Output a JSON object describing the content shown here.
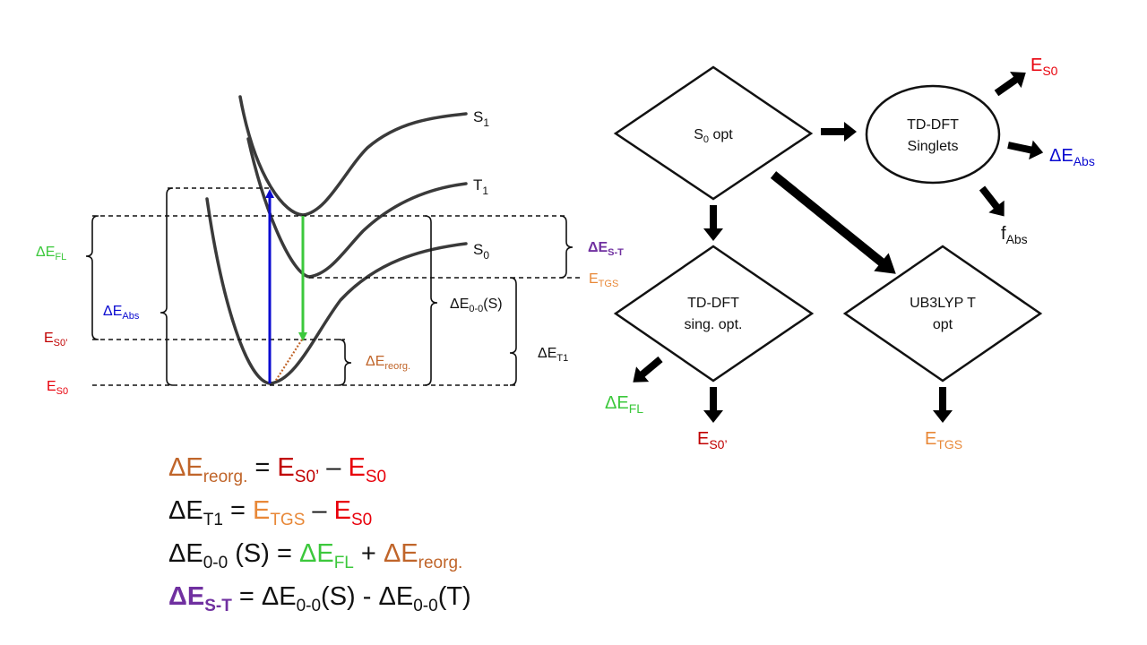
{
  "colors": {
    "black": "#111111",
    "curve": "#3a3a3a",
    "red": "#e8000b",
    "darkred": "#c00000",
    "green": "#3cc83c",
    "blue": "#0a0ad0",
    "orange": "#e88838",
    "brown": "#c0652a",
    "purple": "#7030a0"
  },
  "diagram": {
    "states": [
      {
        "id": "S1",
        "main": "S",
        "sub": "1"
      },
      {
        "id": "T1",
        "main": "T",
        "sub": "1"
      },
      {
        "id": "S0",
        "main": "S",
        "sub": "0"
      }
    ],
    "labels": {
      "dE_FL": {
        "main": "ΔE",
        "sub": "FL"
      },
      "dE_Abs": {
        "main": "ΔE",
        "sub": "Abs"
      },
      "E_S0prime": {
        "main": "E",
        "sub": "S0’"
      },
      "E_S0": {
        "main": "E",
        "sub": "S0"
      },
      "dE_reorg": {
        "main": "ΔE",
        "sub": "reorg."
      },
      "dE_ST": {
        "main": "ΔE",
        "sub": "S-T"
      },
      "E_TGS": {
        "main": "E",
        "sub": "TGS"
      },
      "dE_00S": {
        "main": "ΔE",
        "sub": "0-0",
        "tail": "(S)"
      },
      "dE_T1": {
        "main": "ΔE",
        "sub": "T1"
      }
    }
  },
  "flowchart": {
    "s0_opt": {
      "main": "S",
      "sub": "0",
      "tail": " opt"
    },
    "tddft_singlets": {
      "line1": "TD-DFT",
      "line2": "Singlets"
    },
    "tddft_sing_opt": {
      "line1": "TD-DFT",
      "line2": "sing. opt."
    },
    "ub3lyp": {
      "line1": "UB3LYP T",
      "line2": "opt"
    },
    "out_es0": {
      "main": "E",
      "sub": "S0"
    },
    "out_dEabs": {
      "main": "ΔE",
      "sub": "Abs"
    },
    "out_fabs": {
      "main": "f",
      "sub": "Abs"
    },
    "out_dEfl": {
      "main": "ΔE",
      "sub": "FL"
    },
    "out_es0p": {
      "main": "E",
      "sub": "S0’"
    },
    "out_etgs": {
      "main": "E",
      "sub": "TGS"
    }
  },
  "equations": {
    "eq1": {
      "lhs": "ΔE",
      "lhs_sub": "reorg.",
      "eq": " = ",
      "t1": "E",
      "t1_sub": "S0’",
      "op": " – ",
      "t2": "E",
      "t2_sub": "S0"
    },
    "eq2": {
      "lhs": "ΔE",
      "lhs_sub": "T1",
      "eq": " = ",
      "t1": "E",
      "t1_sub": "TGS",
      "op": " – ",
      "t2": "E",
      "t2_sub": "S0"
    },
    "eq3": {
      "lhs": "ΔE",
      "lhs_sub": "0-0",
      "lhs_tail": " (S)",
      "eq": " = ",
      "t1": "ΔE",
      "t1_sub": "FL",
      "op": " + ",
      "t2": "ΔE",
      "t2_sub": "reorg."
    },
    "eq4": {
      "lhs": "ΔE",
      "lhs_sub": "S-T",
      "eq": " = ",
      "t1": "ΔE",
      "t1_sub": "0-0",
      "t1_tail": "(S)",
      "op": " - ",
      "t2": "ΔE",
      "t2_sub": "0-0",
      "t2_tail": "(T)"
    }
  }
}
